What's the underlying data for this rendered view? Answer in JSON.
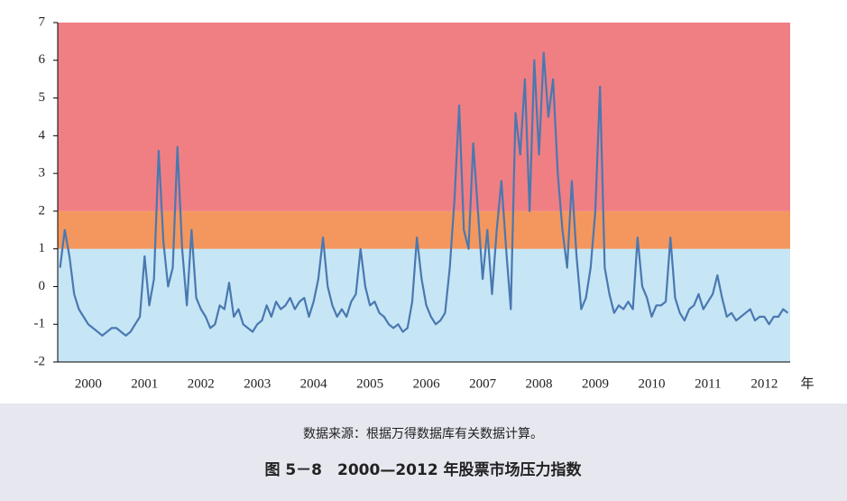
{
  "chart_data": {
    "type": "line",
    "caption": "图 5－8　2000—2012 年股票市场压力指数",
    "source": "数据来源：根据万得数据库有关数据计算。",
    "xlabel": "年",
    "categories": [
      null,
      null,
      null,
      null,
      null,
      null,
      "2000",
      null,
      null,
      null,
      null,
      null,
      null,
      null,
      null,
      null,
      null,
      null,
      "2001",
      null,
      null,
      null,
      null,
      null,
      null,
      null,
      null,
      null,
      null,
      null,
      "2002",
      null,
      null,
      null,
      null,
      null,
      null,
      null,
      null,
      null,
      null,
      null,
      "2003",
      null,
      null,
      null,
      null,
      null,
      null,
      null,
      null,
      null,
      null,
      null,
      "2004",
      null,
      null,
      null,
      null,
      null,
      null,
      null,
      null,
      null,
      null,
      null,
      "2005",
      null,
      null,
      null,
      null,
      null,
      null,
      null,
      null,
      null,
      null,
      null,
      "2006",
      null,
      null,
      null,
      null,
      null,
      null,
      null,
      null,
      null,
      null,
      null,
      "2007",
      null,
      null,
      null,
      null,
      null,
      null,
      null,
      null,
      null,
      null,
      null,
      "2008",
      null,
      null,
      null,
      null,
      null,
      null,
      null,
      null,
      null,
      null,
      null,
      "2009",
      null,
      null,
      null,
      null,
      null,
      null,
      null,
      null,
      null,
      null,
      null,
      "2010",
      null,
      null,
      null,
      null,
      null,
      null,
      null,
      null,
      null,
      null,
      null,
      "2011",
      null,
      null,
      null,
      null,
      null,
      null,
      null,
      null,
      null,
      null,
      null,
      "2012",
      null,
      null,
      null,
      null,
      null
    ],
    "series": [
      {
        "color": "#4a78b0",
        "values": [
          0.5,
          1.5,
          0.8,
          -0.2,
          -0.6,
          -0.8,
          -1.0,
          -1.1,
          -1.2,
          -1.3,
          -1.2,
          -1.1,
          -1.1,
          -1.2,
          -1.3,
          -1.2,
          -1.0,
          -0.8,
          0.8,
          -0.5,
          0.2,
          3.6,
          1.2,
          0.0,
          0.5,
          3.7,
          1.0,
          -0.5,
          1.5,
          -0.3,
          -0.6,
          -0.8,
          -1.1,
          -1.0,
          -0.5,
          -0.6,
          0.1,
          -0.8,
          -0.6,
          -1.0,
          -1.1,
          -1.2,
          -1.0,
          -0.9,
          -0.5,
          -0.8,
          -0.4,
          -0.6,
          -0.5,
          -0.3,
          -0.6,
          -0.4,
          -0.3,
          -0.8,
          -0.4,
          0.2,
          1.3,
          0.0,
          -0.5,
          -0.8,
          -0.6,
          -0.8,
          -0.4,
          -0.2,
          1.0,
          0.0,
          -0.5,
          -0.4,
          -0.7,
          -0.8,
          -1.0,
          -1.1,
          -1.0,
          -1.2,
          -1.1,
          -0.4,
          1.3,
          0.2,
          -0.5,
          -0.8,
          -1.0,
          -0.9,
          -0.7,
          0.5,
          2.3,
          4.8,
          1.5,
          1.0,
          3.8,
          2.0,
          0.2,
          1.5,
          -0.2,
          1.5,
          2.8,
          1.0,
          -0.6,
          4.6,
          3.5,
          5.5,
          2.0,
          6.0,
          3.5,
          6.2,
          4.5,
          5.5,
          3.0,
          1.5,
          0.5,
          2.8,
          0.8,
          -0.6,
          -0.3,
          0.5,
          2.0,
          5.3,
          0.5,
          -0.2,
          -0.7,
          -0.5,
          -0.6,
          -0.4,
          -0.6,
          1.3,
          0.0,
          -0.3,
          -0.8,
          -0.5,
          -0.5,
          -0.4,
          1.3,
          -0.3,
          -0.7,
          -0.9,
          -0.6,
          -0.5,
          -0.2,
          -0.6,
          -0.4,
          -0.2,
          0.3,
          -0.3,
          -0.8,
          -0.7,
          -0.9,
          -0.8,
          -0.7,
          -0.6,
          -0.9,
          -0.8,
          -0.8,
          -1.0,
          -0.8,
          -0.8,
          -0.6,
          -0.7
        ]
      }
    ],
    "bands": [
      {
        "from": -2,
        "to": 1,
        "color": "#c6e6f6"
      },
      {
        "from": 1,
        "to": 2,
        "color": "#f4975e"
      },
      {
        "from": 2,
        "to": 7,
        "color": "#f07f84"
      }
    ],
    "ylim": [
      -2,
      7
    ],
    "yticks": [
      -2,
      -1,
      0,
      1,
      2,
      3,
      4,
      5,
      6,
      7
    ]
  }
}
